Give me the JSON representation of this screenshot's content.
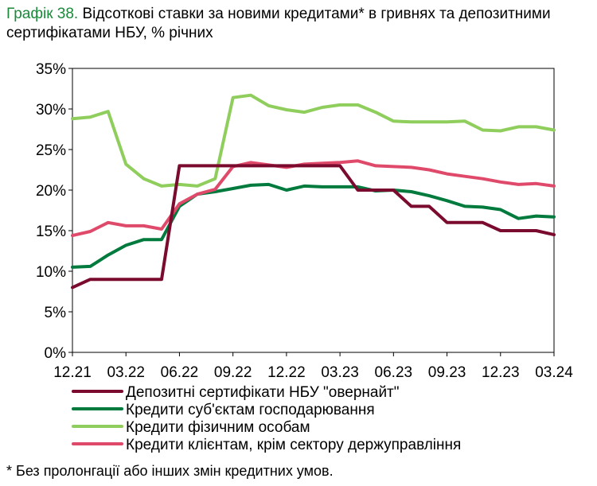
{
  "title_number": "Графік 38.",
  "title_text": " Відсоткові ставки за новими кредитами* в гривнях та депозитними сертифікатами НБУ, % річних",
  "footnote": "* Без пролонгації або інших змін кредитних умов.",
  "chart_data": {
    "type": "line",
    "title": "Графік 38. Відсоткові ставки за новими кредитами* в гривнях та депозитними сертифікатами НБУ, % річних",
    "ylim": [
      0,
      35
    ],
    "y_ticks": [
      0,
      5,
      10,
      15,
      20,
      25,
      30,
      35
    ],
    "y_tick_labels": [
      "0%",
      "5%",
      "10%",
      "15%",
      "20%",
      "25%",
      "30%",
      "35%"
    ],
    "x": [
      "12.21",
      "01.22",
      "02.22",
      "03.22",
      "04.22",
      "05.22",
      "06.22",
      "07.22",
      "08.22",
      "09.22",
      "10.22",
      "11.22",
      "12.22",
      "01.23",
      "02.23",
      "03.23",
      "04.23",
      "05.23",
      "06.23",
      "07.23",
      "08.23",
      "09.23",
      "10.23",
      "11.23",
      "12.23",
      "01.24",
      "02.24",
      "03.24"
    ],
    "x_tick_labels": [
      "12.21",
      "03.22",
      "06.22",
      "09.22",
      "12.22",
      "03.23",
      "06.23",
      "09.23",
      "12.23",
      "03.24"
    ],
    "grid": false,
    "legend_position": "bottom",
    "series": [
      {
        "name": "Депозитні сертифікати НБУ \"овернайт\"",
        "color": "#7a0a2e",
        "values": [
          8,
          9,
          9,
          9,
          9,
          9,
          23,
          23,
          23,
          23,
          23,
          23,
          23,
          23,
          23,
          23,
          20,
          20,
          20,
          18,
          18,
          16,
          16,
          16,
          15,
          15,
          15,
          14.5
        ]
      },
      {
        "name": "Кредити суб'єктам господарювання",
        "color": "#007a3d",
        "values": [
          10.5,
          10.6,
          12,
          13.2,
          13.9,
          13.9,
          18,
          19.5,
          19.8,
          20.2,
          20.6,
          20.7,
          20,
          20.5,
          20.4,
          20.4,
          20.4,
          19.9,
          20,
          19.8,
          19.3,
          18.7,
          18,
          17.9,
          17.6,
          16.5,
          16.8,
          16.7
        ]
      },
      {
        "name": "Кредити фізичним особам",
        "color": "#8fce5c",
        "values": [
          28.8,
          29,
          29.7,
          23.2,
          21.4,
          20.5,
          20.7,
          20.5,
          21.4,
          31.4,
          31.7,
          30.4,
          29.9,
          29.6,
          30.2,
          30.5,
          30.5,
          29.6,
          28.5,
          28.4,
          28.4,
          28.4,
          28.5,
          27.4,
          27.3,
          27.8,
          27.8,
          27.4
        ]
      },
      {
        "name": "Кредити клієнтам, крім сектору держуправління",
        "color": "#e04a6a",
        "values": [
          14.4,
          14.9,
          16,
          15.6,
          15.6,
          15.2,
          18.3,
          19.5,
          20.1,
          22.9,
          23.4,
          23.1,
          22.8,
          23.2,
          23.3,
          23.4,
          23.6,
          23,
          22.9,
          22.8,
          22.5,
          22,
          21.7,
          21.4,
          21,
          20.7,
          20.8,
          20.5
        ]
      }
    ]
  }
}
